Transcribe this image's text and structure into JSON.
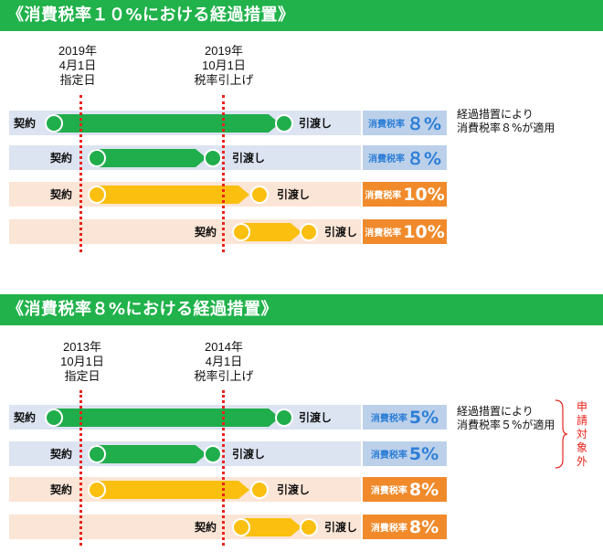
{
  "sections": [
    {
      "title": "《消費税率１０%における経過措置》",
      "date1": [
        "2019年",
        "4月1日",
        "指定日"
      ],
      "date2": [
        "2019年",
        "10月1日",
        "税率引上げ"
      ],
      "note": [
        "経過措置により",
        "消費税率８%が適用"
      ],
      "rows": [
        {
          "start": "契約",
          "end": "引渡し",
          "rate_label": "消費税率",
          "rate_value": "８%"
        },
        {
          "start": "契約",
          "end": "引渡し",
          "rate_label": "消費税率",
          "rate_value": "８%"
        },
        {
          "start": "契約",
          "end": "引渡し",
          "rate_label": "消費税率",
          "rate_value": "10%"
        },
        {
          "start": "契約",
          "end": "引渡し",
          "rate_label": "消費税率",
          "rate_value": "10%"
        }
      ]
    },
    {
      "title": "《消費税率８%における経過措置》",
      "date1": [
        "2013年",
        "10月1日",
        "指定日"
      ],
      "date2": [
        "2014年",
        "4月1日",
        "税率引上げ"
      ],
      "note": [
        "経過措置により",
        "消費税率５%が適用"
      ],
      "vertical_note": [
        "申",
        "請",
        "対",
        "象",
        "外"
      ],
      "rows": [
        {
          "start": "契約",
          "end": "引渡し",
          "rate_label": "消費税率",
          "rate_value": "5%"
        },
        {
          "start": "契約",
          "end": "引渡し",
          "rate_label": "消費税率",
          "rate_value": "5%"
        },
        {
          "start": "契約",
          "end": "引渡し",
          "rate_label": "消費税率",
          "rate_value": "8%"
        },
        {
          "start": "契約",
          "end": "引渡し",
          "rate_label": "消費税率",
          "rate_value": "8%"
        }
      ]
    }
  ]
}
